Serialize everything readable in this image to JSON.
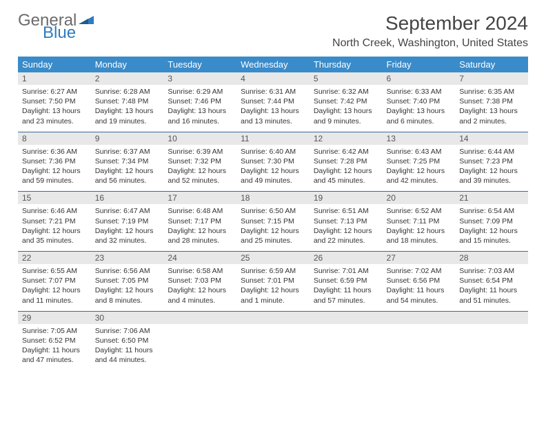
{
  "logo": {
    "general": "General",
    "blue": "Blue"
  },
  "title": "September 2024",
  "location": "North Creek, Washington, United States",
  "colors": {
    "header_bg": "#3a8bc9",
    "header_text": "#ffffff",
    "daynum_bg": "#e8e8e8",
    "row_border": "#3a6a9a",
    "logo_gray": "#6b6b6b",
    "logo_blue": "#2f7bbf"
  },
  "day_headers": [
    "Sunday",
    "Monday",
    "Tuesday",
    "Wednesday",
    "Thursday",
    "Friday",
    "Saturday"
  ],
  "weeks": [
    [
      {
        "num": "1",
        "sunrise": "Sunrise: 6:27 AM",
        "sunset": "Sunset: 7:50 PM",
        "daylight": "Daylight: 13 hours and 23 minutes."
      },
      {
        "num": "2",
        "sunrise": "Sunrise: 6:28 AM",
        "sunset": "Sunset: 7:48 PM",
        "daylight": "Daylight: 13 hours and 19 minutes."
      },
      {
        "num": "3",
        "sunrise": "Sunrise: 6:29 AM",
        "sunset": "Sunset: 7:46 PM",
        "daylight": "Daylight: 13 hours and 16 minutes."
      },
      {
        "num": "4",
        "sunrise": "Sunrise: 6:31 AM",
        "sunset": "Sunset: 7:44 PM",
        "daylight": "Daylight: 13 hours and 13 minutes."
      },
      {
        "num": "5",
        "sunrise": "Sunrise: 6:32 AM",
        "sunset": "Sunset: 7:42 PM",
        "daylight": "Daylight: 13 hours and 9 minutes."
      },
      {
        "num": "6",
        "sunrise": "Sunrise: 6:33 AM",
        "sunset": "Sunset: 7:40 PM",
        "daylight": "Daylight: 13 hours and 6 minutes."
      },
      {
        "num": "7",
        "sunrise": "Sunrise: 6:35 AM",
        "sunset": "Sunset: 7:38 PM",
        "daylight": "Daylight: 13 hours and 2 minutes."
      }
    ],
    [
      {
        "num": "8",
        "sunrise": "Sunrise: 6:36 AM",
        "sunset": "Sunset: 7:36 PM",
        "daylight": "Daylight: 12 hours and 59 minutes."
      },
      {
        "num": "9",
        "sunrise": "Sunrise: 6:37 AM",
        "sunset": "Sunset: 7:34 PM",
        "daylight": "Daylight: 12 hours and 56 minutes."
      },
      {
        "num": "10",
        "sunrise": "Sunrise: 6:39 AM",
        "sunset": "Sunset: 7:32 PM",
        "daylight": "Daylight: 12 hours and 52 minutes."
      },
      {
        "num": "11",
        "sunrise": "Sunrise: 6:40 AM",
        "sunset": "Sunset: 7:30 PM",
        "daylight": "Daylight: 12 hours and 49 minutes."
      },
      {
        "num": "12",
        "sunrise": "Sunrise: 6:42 AM",
        "sunset": "Sunset: 7:28 PM",
        "daylight": "Daylight: 12 hours and 45 minutes."
      },
      {
        "num": "13",
        "sunrise": "Sunrise: 6:43 AM",
        "sunset": "Sunset: 7:25 PM",
        "daylight": "Daylight: 12 hours and 42 minutes."
      },
      {
        "num": "14",
        "sunrise": "Sunrise: 6:44 AM",
        "sunset": "Sunset: 7:23 PM",
        "daylight": "Daylight: 12 hours and 39 minutes."
      }
    ],
    [
      {
        "num": "15",
        "sunrise": "Sunrise: 6:46 AM",
        "sunset": "Sunset: 7:21 PM",
        "daylight": "Daylight: 12 hours and 35 minutes."
      },
      {
        "num": "16",
        "sunrise": "Sunrise: 6:47 AM",
        "sunset": "Sunset: 7:19 PM",
        "daylight": "Daylight: 12 hours and 32 minutes."
      },
      {
        "num": "17",
        "sunrise": "Sunrise: 6:48 AM",
        "sunset": "Sunset: 7:17 PM",
        "daylight": "Daylight: 12 hours and 28 minutes."
      },
      {
        "num": "18",
        "sunrise": "Sunrise: 6:50 AM",
        "sunset": "Sunset: 7:15 PM",
        "daylight": "Daylight: 12 hours and 25 minutes."
      },
      {
        "num": "19",
        "sunrise": "Sunrise: 6:51 AM",
        "sunset": "Sunset: 7:13 PM",
        "daylight": "Daylight: 12 hours and 22 minutes."
      },
      {
        "num": "20",
        "sunrise": "Sunrise: 6:52 AM",
        "sunset": "Sunset: 7:11 PM",
        "daylight": "Daylight: 12 hours and 18 minutes."
      },
      {
        "num": "21",
        "sunrise": "Sunrise: 6:54 AM",
        "sunset": "Sunset: 7:09 PM",
        "daylight": "Daylight: 12 hours and 15 minutes."
      }
    ],
    [
      {
        "num": "22",
        "sunrise": "Sunrise: 6:55 AM",
        "sunset": "Sunset: 7:07 PM",
        "daylight": "Daylight: 12 hours and 11 minutes."
      },
      {
        "num": "23",
        "sunrise": "Sunrise: 6:56 AM",
        "sunset": "Sunset: 7:05 PM",
        "daylight": "Daylight: 12 hours and 8 minutes."
      },
      {
        "num": "24",
        "sunrise": "Sunrise: 6:58 AM",
        "sunset": "Sunset: 7:03 PM",
        "daylight": "Daylight: 12 hours and 4 minutes."
      },
      {
        "num": "25",
        "sunrise": "Sunrise: 6:59 AM",
        "sunset": "Sunset: 7:01 PM",
        "daylight": "Daylight: 12 hours and 1 minute."
      },
      {
        "num": "26",
        "sunrise": "Sunrise: 7:01 AM",
        "sunset": "Sunset: 6:59 PM",
        "daylight": "Daylight: 11 hours and 57 minutes."
      },
      {
        "num": "27",
        "sunrise": "Sunrise: 7:02 AM",
        "sunset": "Sunset: 6:56 PM",
        "daylight": "Daylight: 11 hours and 54 minutes."
      },
      {
        "num": "28",
        "sunrise": "Sunrise: 7:03 AM",
        "sunset": "Sunset: 6:54 PM",
        "daylight": "Daylight: 11 hours and 51 minutes."
      }
    ],
    [
      {
        "num": "29",
        "sunrise": "Sunrise: 7:05 AM",
        "sunset": "Sunset: 6:52 PM",
        "daylight": "Daylight: 11 hours and 47 minutes."
      },
      {
        "num": "30",
        "sunrise": "Sunrise: 7:06 AM",
        "sunset": "Sunset: 6:50 PM",
        "daylight": "Daylight: 11 hours and 44 minutes."
      },
      {
        "empty": true
      },
      {
        "empty": true
      },
      {
        "empty": true
      },
      {
        "empty": true
      },
      {
        "empty": true
      }
    ]
  ]
}
